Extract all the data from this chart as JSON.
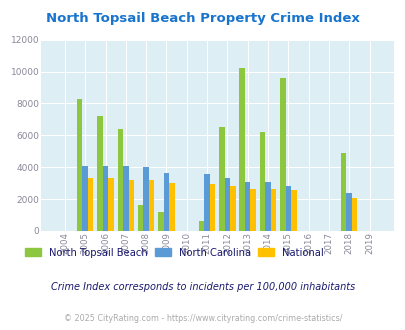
{
  "title": "North Topsail Beach Property Crime Index",
  "title_color": "#1874cd",
  "years": [
    2004,
    2005,
    2006,
    2007,
    2008,
    2009,
    2010,
    2011,
    2012,
    2013,
    2014,
    2015,
    2016,
    2017,
    2018,
    2019
  ],
  "ntb": [
    0,
    8250,
    7200,
    6400,
    1600,
    1200,
    0,
    600,
    6550,
    10200,
    6200,
    9600,
    0,
    0,
    4900,
    0
  ],
  "nc": [
    0,
    4050,
    4050,
    4050,
    4000,
    3650,
    0,
    3550,
    3350,
    3050,
    3050,
    2800,
    0,
    0,
    2400,
    0
  ],
  "nat": [
    0,
    3350,
    3300,
    3200,
    3200,
    3000,
    0,
    2950,
    2800,
    2650,
    2650,
    2550,
    0,
    0,
    2100,
    0
  ],
  "ntb_color": "#8dc63f",
  "nc_color": "#5b9bd5",
  "nat_color": "#ffc000",
  "ylim": [
    0,
    12000
  ],
  "yticks": [
    0,
    2000,
    4000,
    6000,
    8000,
    10000,
    12000
  ],
  "plot_bg": "#ddeef5",
  "grid_color": "#ffffff",
  "bar_width": 0.27,
  "legend_labels": [
    "North Topsail Beach",
    "North Carolina",
    "National"
  ],
  "footnote1": "Crime Index corresponds to incidents per 100,000 inhabitants",
  "footnote2": "© 2025 CityRating.com - https://www.cityrating.com/crime-statistics/",
  "footnote2_color": "#aaaaaa",
  "footnote1_color": "#1a1a6e",
  "tick_color": "#888899",
  "legend_text_color": "#1a1a6e"
}
